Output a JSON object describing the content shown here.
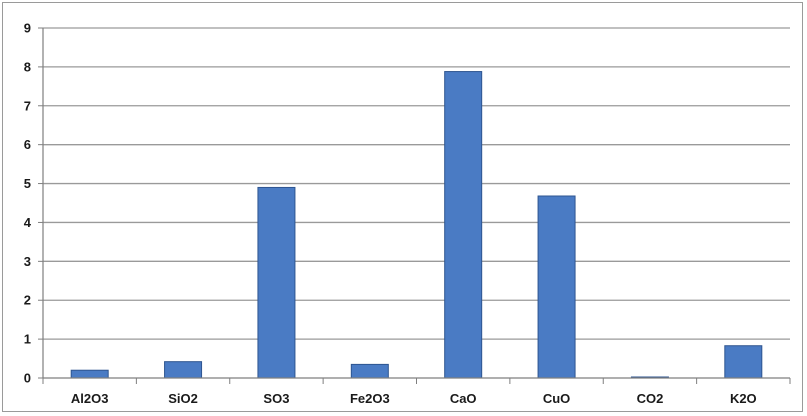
{
  "chart_data": {
    "type": "bar",
    "title": "",
    "xlabel": "",
    "ylabel": "",
    "categories": [
      "Al2O3",
      "SiO2",
      "SO3",
      "Fe2O3",
      "CaO",
      "CuO",
      "CO2",
      "K2O"
    ],
    "values": [
      0.2,
      0.42,
      4.9,
      0.35,
      7.88,
      4.68,
      0.02,
      0.83
    ],
    "ylim": [
      0,
      9
    ],
    "yticks": [
      "0",
      "1",
      "2",
      "3",
      "4",
      "5",
      "6",
      "7",
      "8",
      "9"
    ],
    "grid": true,
    "legend": "none",
    "colors": {
      "bar": "#4a7bc4",
      "bar_edge": "#2e5590",
      "grid": "#9a9a9a",
      "axis": "#7f7f7f"
    }
  }
}
